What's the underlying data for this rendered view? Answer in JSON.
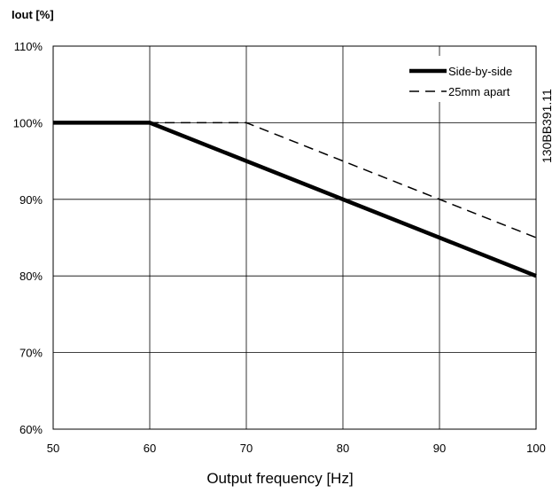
{
  "chart_data": {
    "type": "line",
    "title": "",
    "ylabel": "Iout [%]",
    "xlabel": "Output frequency [Hz]",
    "xlim": [
      50,
      100
    ],
    "ylim": [
      60,
      110
    ],
    "x_ticks": [
      50,
      60,
      70,
      80,
      90,
      100
    ],
    "y_ticks": [
      60,
      70,
      80,
      90,
      100,
      110
    ],
    "x_tick_labels": [
      "50",
      "60",
      "70",
      "80",
      "90",
      "100"
    ],
    "y_tick_labels": [
      "60%",
      "70%",
      "80%",
      "90%",
      "100%",
      "110%"
    ],
    "grid": true,
    "legend_position": "top-right",
    "series": [
      {
        "name": "Side-by-side",
        "style": "solid-thick",
        "color": "#000000",
        "x": [
          50,
          60,
          100
        ],
        "y": [
          100,
          100,
          80
        ]
      },
      {
        "name": "25mm apart",
        "style": "dashed",
        "color": "#000000",
        "x": [
          50,
          70,
          100
        ],
        "y": [
          100,
          100,
          85
        ]
      }
    ],
    "annotation": "130BB391.11"
  }
}
